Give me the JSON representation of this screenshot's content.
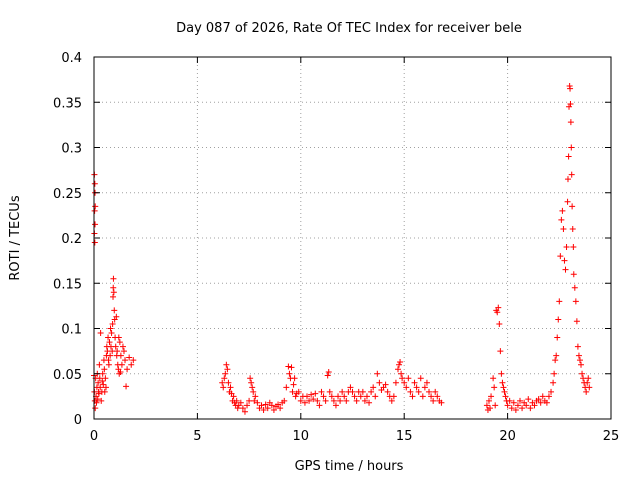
{
  "chart_data": {
    "type": "scatter",
    "title": "Day 087 of 2026, Rate Of TEC Index for receiver bele",
    "xlabel": "GPS time / hours",
    "ylabel": "ROTI / TECUs",
    "xlim": [
      0,
      25
    ],
    "ylim": [
      0,
      0.4
    ],
    "x_ticks": [
      0,
      5,
      10,
      15,
      20,
      25
    ],
    "y_ticks": [
      0,
      0.05,
      0.1,
      0.15,
      0.2,
      0.25,
      0.3,
      0.35,
      0.4
    ],
    "x_tick_labels": [
      "0",
      "5",
      "10",
      "15",
      "20",
      "25"
    ],
    "y_tick_labels": [
      "0",
      "0.05",
      "0.1",
      "0.15",
      "0.2",
      "0.25",
      "0.3",
      "0.35",
      "0.4"
    ],
    "grid": true,
    "marker": "+",
    "marker_color": "#ff0000",
    "points": [
      [
        0.02,
        0.27
      ],
      [
        0.04,
        0.26
      ],
      [
        0.05,
        0.25
      ],
      [
        0.06,
        0.235
      ],
      [
        0.03,
        0.23
      ],
      [
        0.05,
        0.215
      ],
      [
        0.02,
        0.205
      ],
      [
        0.04,
        0.195
      ],
      [
        0.0,
        0.048
      ],
      [
        0.02,
        0.03
      ],
      [
        0.04,
        0.02
      ],
      [
        0.06,
        0.012
      ],
      [
        0.08,
        0.045
      ],
      [
        0.1,
        0.025
      ],
      [
        0.12,
        0.018
      ],
      [
        0.14,
        0.035
      ],
      [
        0.16,
        0.05
      ],
      [
        0.18,
        0.022
      ],
      [
        0.2,
        0.04
      ],
      [
        0.22,
        0.03
      ],
      [
        0.24,
        0.028
      ],
      [
        0.26,
        0.06
      ],
      [
        0.28,
        0.045
      ],
      [
        0.3,
        0.035
      ],
      [
        0.32,
        0.095
      ],
      [
        0.35,
        0.02
      ],
      [
        0.38,
        0.03
      ],
      [
        0.4,
        0.042
      ],
      [
        0.42,
        0.05
      ],
      [
        0.45,
        0.038
      ],
      [
        0.48,
        0.065
      ],
      [
        0.5,
        0.055
      ],
      [
        0.52,
        0.03
      ],
      [
        0.55,
        0.045
      ],
      [
        0.58,
        0.035
      ],
      [
        0.6,
        0.07
      ],
      [
        0.62,
        0.08
      ],
      [
        0.65,
        0.075
      ],
      [
        0.68,
        0.09
      ],
      [
        0.7,
        0.065
      ],
      [
        0.72,
        0.06
      ],
      [
        0.75,
        0.085
      ],
      [
        0.78,
        0.07
      ],
      [
        0.8,
        0.1
      ],
      [
        0.82,
        0.08
      ],
      [
        0.85,
        0.095
      ],
      [
        0.88,
        0.075
      ],
      [
        0.9,
        0.105
      ],
      [
        0.92,
        0.135
      ],
      [
        0.93,
        0.145
      ],
      [
        0.94,
        0.155
      ],
      [
        0.96,
        0.14
      ],
      [
        0.98,
        0.12
      ],
      [
        1.0,
        0.11
      ],
      [
        1.02,
        0.09
      ],
      [
        1.05,
        0.08
      ],
      [
        1.08,
        0.113
      ],
      [
        1.1,
        0.07
      ],
      [
        1.12,
        0.075
      ],
      [
        1.15,
        0.06
      ],
      [
        1.18,
        0.055
      ],
      [
        1.2,
        0.09
      ],
      [
        1.22,
        0.05
      ],
      [
        1.25,
        0.085
      ],
      [
        1.28,
        0.052
      ],
      [
        1.3,
        0.07
      ],
      [
        1.35,
        0.06
      ],
      [
        1.4,
        0.08
      ],
      [
        1.45,
        0.075
      ],
      [
        1.5,
        0.065
      ],
      [
        1.55,
        0.036
      ],
      [
        1.6,
        0.055
      ],
      [
        1.7,
        0.068
      ],
      [
        1.8,
        0.06
      ],
      [
        1.9,
        0.065
      ],
      [
        6.2,
        0.04
      ],
      [
        6.25,
        0.035
      ],
      [
        6.3,
        0.045
      ],
      [
        6.35,
        0.05
      ],
      [
        6.4,
        0.06
      ],
      [
        6.45,
        0.055
      ],
      [
        6.5,
        0.04
      ],
      [
        6.55,
        0.03
      ],
      [
        6.6,
        0.035
      ],
      [
        6.65,
        0.028
      ],
      [
        6.7,
        0.02
      ],
      [
        6.75,
        0.025
      ],
      [
        6.8,
        0.018
      ],
      [
        6.85,
        0.015
      ],
      [
        6.9,
        0.02
      ],
      [
        6.95,
        0.012
      ],
      [
        7.0,
        0.015
      ],
      [
        7.1,
        0.018
      ],
      [
        7.2,
        0.012
      ],
      [
        7.3,
        0.008
      ],
      [
        7.4,
        0.015
      ],
      [
        7.5,
        0.02
      ],
      [
        7.55,
        0.045
      ],
      [
        7.6,
        0.04
      ],
      [
        7.65,
        0.035
      ],
      [
        7.7,
        0.03
      ],
      [
        7.75,
        0.02
      ],
      [
        7.8,
        0.025
      ],
      [
        7.9,
        0.018
      ],
      [
        8.0,
        0.012
      ],
      [
        8.1,
        0.015
      ],
      [
        8.2,
        0.01
      ],
      [
        8.3,
        0.016
      ],
      [
        8.4,
        0.012
      ],
      [
        8.5,
        0.018
      ],
      [
        8.6,
        0.015
      ],
      [
        8.7,
        0.01
      ],
      [
        8.8,
        0.014
      ],
      [
        8.9,
        0.016
      ],
      [
        9.0,
        0.012
      ],
      [
        9.1,
        0.018
      ],
      [
        9.2,
        0.02
      ],
      [
        9.3,
        0.035
      ],
      [
        9.4,
        0.058
      ],
      [
        9.45,
        0.05
      ],
      [
        9.5,
        0.045
      ],
      [
        9.55,
        0.057
      ],
      [
        9.6,
        0.03
      ],
      [
        9.65,
        0.038
      ],
      [
        9.7,
        0.045
      ],
      [
        9.75,
        0.025
      ],
      [
        9.8,
        0.028
      ],
      [
        9.9,
        0.03
      ],
      [
        10.0,
        0.02
      ],
      [
        10.1,
        0.025
      ],
      [
        10.2,
        0.018
      ],
      [
        10.3,
        0.025
      ],
      [
        10.4,
        0.02
      ],
      [
        10.5,
        0.027
      ],
      [
        10.6,
        0.022
      ],
      [
        10.7,
        0.028
      ],
      [
        10.8,
        0.02
      ],
      [
        10.9,
        0.015
      ],
      [
        11.0,
        0.03
      ],
      [
        11.1,
        0.025
      ],
      [
        11.2,
        0.02
      ],
      [
        11.3,
        0.048
      ],
      [
        11.35,
        0.052
      ],
      [
        11.4,
        0.03
      ],
      [
        11.5,
        0.025
      ],
      [
        11.6,
        0.02
      ],
      [
        11.7,
        0.015
      ],
      [
        11.8,
        0.025
      ],
      [
        11.9,
        0.02
      ],
      [
        12.0,
        0.03
      ],
      [
        12.1,
        0.025
      ],
      [
        12.2,
        0.02
      ],
      [
        12.3,
        0.03
      ],
      [
        12.4,
        0.035
      ],
      [
        12.5,
        0.03
      ],
      [
        12.6,
        0.025
      ],
      [
        12.7,
        0.02
      ],
      [
        12.8,
        0.03
      ],
      [
        12.9,
        0.025
      ],
      [
        13.0,
        0.03
      ],
      [
        13.1,
        0.02
      ],
      [
        13.2,
        0.025
      ],
      [
        13.3,
        0.018
      ],
      [
        13.4,
        0.03
      ],
      [
        13.5,
        0.035
      ],
      [
        13.6,
        0.025
      ],
      [
        13.7,
        0.05
      ],
      [
        13.8,
        0.04
      ],
      [
        13.9,
        0.032
      ],
      [
        14.0,
        0.035
      ],
      [
        14.1,
        0.038
      ],
      [
        14.2,
        0.03
      ],
      [
        14.3,
        0.025
      ],
      [
        14.4,
        0.02
      ],
      [
        14.5,
        0.025
      ],
      [
        14.6,
        0.04
      ],
      [
        14.7,
        0.055
      ],
      [
        14.75,
        0.06
      ],
      [
        14.8,
        0.063
      ],
      [
        14.85,
        0.05
      ],
      [
        14.9,
        0.045
      ],
      [
        15.0,
        0.04
      ],
      [
        15.1,
        0.035
      ],
      [
        15.2,
        0.045
      ],
      [
        15.3,
        0.03
      ],
      [
        15.4,
        0.025
      ],
      [
        15.5,
        0.04
      ],
      [
        15.6,
        0.035
      ],
      [
        15.7,
        0.03
      ],
      [
        15.8,
        0.045
      ],
      [
        15.9,
        0.025
      ],
      [
        16.0,
        0.035
      ],
      [
        16.1,
        0.04
      ],
      [
        16.2,
        0.03
      ],
      [
        16.3,
        0.025
      ],
      [
        16.4,
        0.02
      ],
      [
        16.5,
        0.03
      ],
      [
        16.6,
        0.025
      ],
      [
        16.7,
        0.02
      ],
      [
        16.8,
        0.018
      ],
      [
        19.0,
        0.015
      ],
      [
        19.05,
        0.01
      ],
      [
        19.1,
        0.02
      ],
      [
        19.15,
        0.012
      ],
      [
        19.2,
        0.025
      ],
      [
        19.3,
        0.045
      ],
      [
        19.35,
        0.035
      ],
      [
        19.4,
        0.015
      ],
      [
        19.45,
        0.12
      ],
      [
        19.5,
        0.118
      ],
      [
        19.55,
        0.123
      ],
      [
        19.6,
        0.105
      ],
      [
        19.65,
        0.075
      ],
      [
        19.7,
        0.05
      ],
      [
        19.75,
        0.04
      ],
      [
        19.8,
        0.035
      ],
      [
        19.85,
        0.03
      ],
      [
        19.9,
        0.025
      ],
      [
        19.95,
        0.02
      ],
      [
        20.0,
        0.015
      ],
      [
        20.1,
        0.02
      ],
      [
        20.2,
        0.012
      ],
      [
        20.3,
        0.018
      ],
      [
        20.4,
        0.01
      ],
      [
        20.5,
        0.015
      ],
      [
        20.6,
        0.02
      ],
      [
        20.7,
        0.012
      ],
      [
        20.8,
        0.018
      ],
      [
        20.9,
        0.015
      ],
      [
        21.0,
        0.022
      ],
      [
        21.1,
        0.012
      ],
      [
        21.2,
        0.018
      ],
      [
        21.3,
        0.015
      ],
      [
        21.4,
        0.02
      ],
      [
        21.5,
        0.022
      ],
      [
        21.6,
        0.018
      ],
      [
        21.7,
        0.025
      ],
      [
        21.8,
        0.02
      ],
      [
        21.9,
        0.018
      ],
      [
        22.0,
        0.025
      ],
      [
        22.1,
        0.03
      ],
      [
        22.2,
        0.04
      ],
      [
        22.25,
        0.05
      ],
      [
        22.3,
        0.065
      ],
      [
        22.35,
        0.07
      ],
      [
        22.4,
        0.09
      ],
      [
        22.45,
        0.11
      ],
      [
        22.5,
        0.13
      ],
      [
        22.55,
        0.18
      ],
      [
        22.6,
        0.22
      ],
      [
        22.65,
        0.23
      ],
      [
        22.7,
        0.21
      ],
      [
        22.75,
        0.175
      ],
      [
        22.8,
        0.165
      ],
      [
        22.85,
        0.19
      ],
      [
        22.9,
        0.24
      ],
      [
        22.92,
        0.265
      ],
      [
        22.95,
        0.29
      ],
      [
        22.97,
        0.345
      ],
      [
        23.0,
        0.368
      ],
      [
        23.02,
        0.365
      ],
      [
        23.04,
        0.348
      ],
      [
        23.06,
        0.328
      ],
      [
        23.08,
        0.3
      ],
      [
        23.1,
        0.27
      ],
      [
        23.12,
        0.235
      ],
      [
        23.15,
        0.21
      ],
      [
        23.18,
        0.19
      ],
      [
        23.2,
        0.16
      ],
      [
        23.25,
        0.145
      ],
      [
        23.3,
        0.13
      ],
      [
        23.35,
        0.108
      ],
      [
        23.4,
        0.08
      ],
      [
        23.45,
        0.07
      ],
      [
        23.5,
        0.065
      ],
      [
        23.55,
        0.06
      ],
      [
        23.6,
        0.05
      ],
      [
        23.65,
        0.045
      ],
      [
        23.7,
        0.04
      ],
      [
        23.75,
        0.035
      ],
      [
        23.8,
        0.03
      ],
      [
        23.85,
        0.04
      ],
      [
        23.9,
        0.045
      ],
      [
        23.95,
        0.035
      ]
    ]
  }
}
